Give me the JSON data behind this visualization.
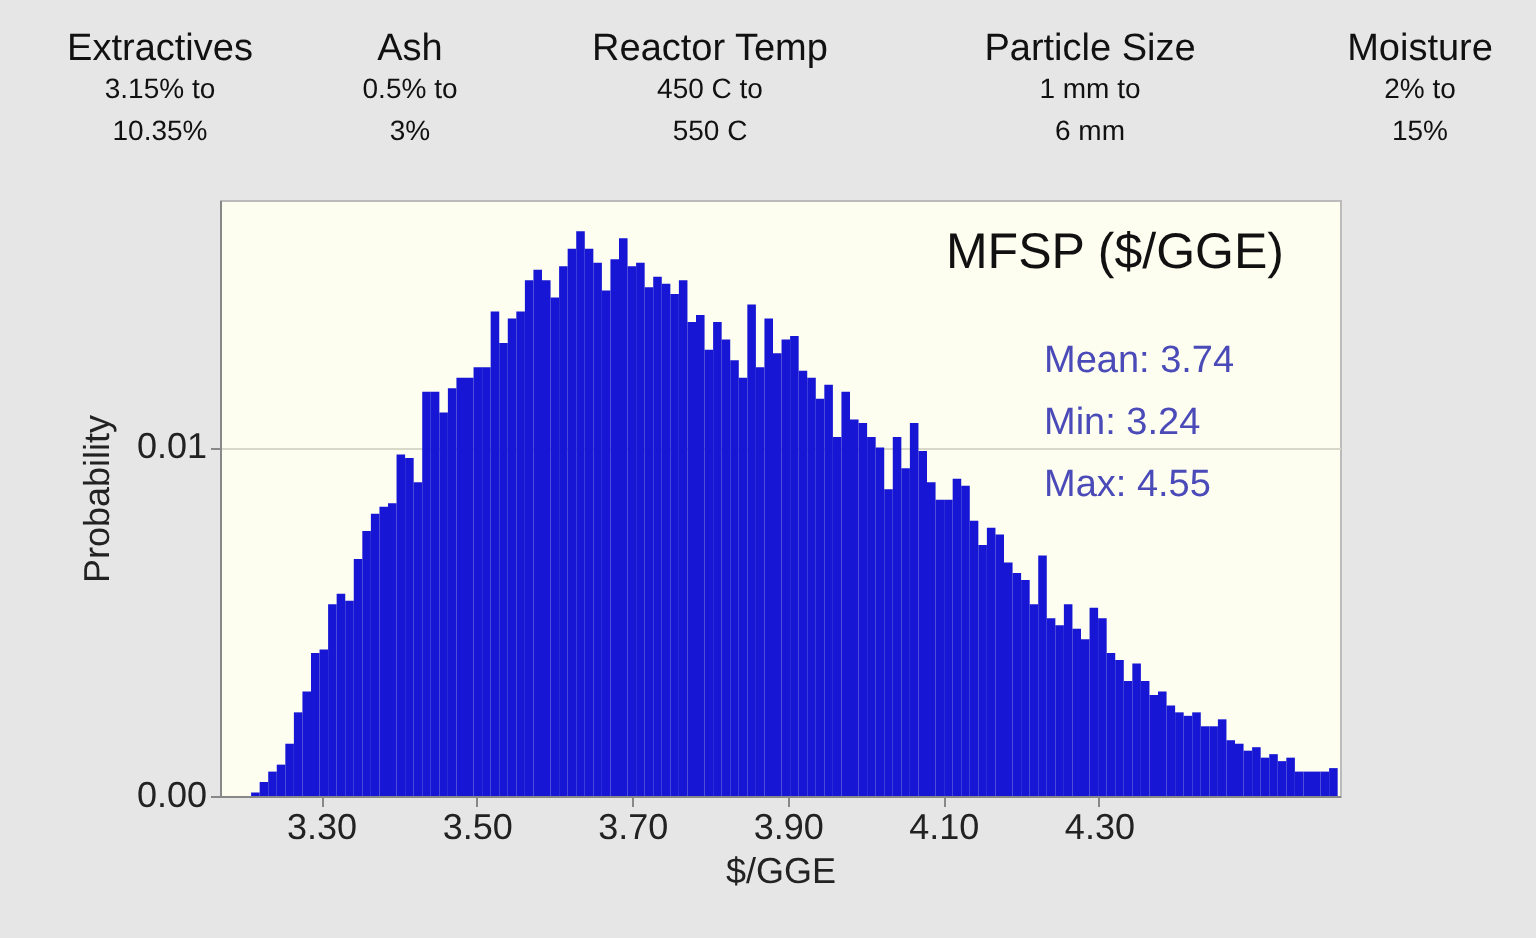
{
  "chart_data": {
    "type": "histogram",
    "title": "MFSP ($/GGE)",
    "xlabel": "$/GGE",
    "ylabel": "Probability",
    "color": "#1616d4",
    "bins": [
      3.21,
      3.221,
      3.232,
      3.243,
      3.254,
      3.265,
      3.276,
      3.287,
      3.298,
      3.309,
      3.32,
      3.331,
      3.342,
      3.353,
      3.364,
      3.375,
      3.386,
      3.397,
      3.408,
      3.419,
      3.43,
      3.441,
      3.452,
      3.463,
      3.474,
      3.485,
      3.496,
      3.507,
      3.518,
      3.529,
      3.54,
      3.551,
      3.562,
      3.573,
      3.584,
      3.595,
      3.606,
      3.617,
      3.628,
      3.639,
      3.65,
      3.661,
      3.672,
      3.683,
      3.694,
      3.705,
      3.716,
      3.727,
      3.738,
      3.749,
      3.76,
      3.771,
      3.782,
      3.793,
      3.804,
      3.815,
      3.826,
      3.837,
      3.848,
      3.859,
      3.87,
      3.881,
      3.892,
      3.903,
      3.914,
      3.925,
      3.936,
      3.947,
      3.958,
      3.969,
      3.98,
      3.991,
      4.002,
      4.013,
      4.024,
      4.035,
      4.046,
      4.057,
      4.068,
      4.079,
      4.09,
      4.101,
      4.112,
      4.123,
      4.134,
      4.145,
      4.156,
      4.167,
      4.178,
      4.189,
      4.2,
      4.211,
      4.222,
      4.233,
      4.244,
      4.255,
      4.266,
      4.277,
      4.288,
      4.299,
      4.31,
      4.321,
      4.332,
      4.343,
      4.354,
      4.365,
      4.376,
      4.387,
      4.398,
      4.409,
      4.42,
      4.431,
      4.442,
      4.453,
      4.464,
      4.475,
      4.486,
      4.497,
      4.508,
      4.519,
      4.53,
      4.541,
      4.552,
      4.563,
      4.574,
      4.585,
      4.596,
      4.607
    ],
    "values": [
      0.0001,
      0.0004,
      0.0007,
      0.0009,
      0.0015,
      0.0024,
      0.003,
      0.0041,
      0.0042,
      0.0055,
      0.0058,
      0.0056,
      0.0068,
      0.0076,
      0.0081,
      0.0083,
      0.0084,
      0.0098,
      0.0097,
      0.009,
      0.0116,
      0.0116,
      0.011,
      0.0117,
      0.012,
      0.012,
      0.0123,
      0.0123,
      0.0139,
      0.013,
      0.0137,
      0.0139,
      0.0148,
      0.0151,
      0.0148,
      0.0143,
      0.0152,
      0.0157,
      0.0162,
      0.0157,
      0.0153,
      0.0145,
      0.0154,
      0.016,
      0.0152,
      0.0153,
      0.0146,
      0.0149,
      0.0147,
      0.0144,
      0.0148,
      0.0136,
      0.0138,
      0.0128,
      0.0136,
      0.0131,
      0.0125,
      0.012,
      0.0141,
      0.0123,
      0.0137,
      0.0127,
      0.0131,
      0.0132,
      0.0122,
      0.012,
      0.0114,
      0.0118,
      0.0103,
      0.0116,
      0.0108,
      0.0107,
      0.0103,
      0.01,
      0.0088,
      0.0103,
      0.0094,
      0.0107,
      0.0099,
      0.009,
      0.0085,
      0.0085,
      0.0091,
      0.0089,
      0.0079,
      0.0072,
      0.0077,
      0.0075,
      0.0067,
      0.0064,
      0.0062,
      0.0055,
      0.0069,
      0.0051,
      0.0049,
      0.0055,
      0.0048,
      0.0045,
      0.0054,
      0.0051,
      0.0041,
      0.0039,
      0.0033,
      0.0038,
      0.0033,
      0.0029,
      0.003,
      0.0026,
      0.0024,
      0.0023,
      0.0024,
      0.002,
      0.002,
      0.0022,
      0.0016,
      0.0015,
      0.0013,
      0.0014,
      0.0011,
      0.0012,
      0.001,
      0.0011,
      0.0007,
      0.0007,
      0.0007,
      0.0007,
      0.0008
    ],
    "xlim": [
      3.17,
      4.61
    ],
    "xticks": [
      {
        "value": 3.3,
        "label": "3.30"
      },
      {
        "value": 3.5,
        "label": "3.50"
      },
      {
        "value": 3.7,
        "label": "3.70"
      },
      {
        "value": 3.9,
        "label": "3.90"
      },
      {
        "value": 4.1,
        "label": "4.10"
      },
      {
        "value": 4.3,
        "label": "4.30"
      }
    ],
    "ylim": [
      0,
      0.0171
    ],
    "yticks": [
      {
        "value": 0,
        "label": "0.00"
      },
      0.01
    ],
    "grid": "y",
    "annotations": [
      "Extractives",
      "3.15% to",
      "10.35%",
      "Ash",
      "0.5% to",
      "3%",
      "Reactor Temp",
      "450 C to",
      "550 C",
      "Particle Size",
      "1 mm to",
      "6 mm",
      "Moisture",
      "2% to",
      "15%",
      "Mean: 3.74",
      "Min: 3.24",
      "Max: 4.55"
    ]
  }
}
